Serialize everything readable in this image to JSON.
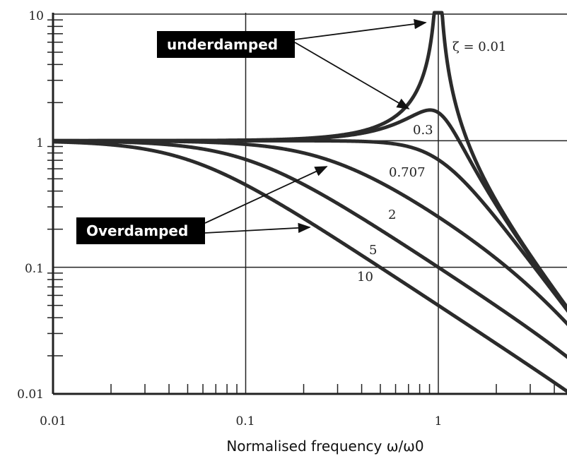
{
  "chart_data": {
    "type": "line",
    "title": "",
    "xlabel": "Normalised frequency ω/ω0",
    "ylabel": "",
    "xscale": "log",
    "yscale": "log",
    "xlim": [
      0.01,
      5
    ],
    "ylim": [
      0.01,
      10
    ],
    "grid": true,
    "x_ticks": [
      "0.01",
      "0.1",
      "1"
    ],
    "y_ticks": [
      "0.01",
      "0.1",
      "1",
      "10"
    ],
    "series": [
      {
        "label": "ζ = 0.01",
        "zeta": 0.01
      },
      {
        "label": "0.3",
        "zeta": 0.3
      },
      {
        "label": "0.707",
        "zeta": 0.707
      },
      {
        "label": "2",
        "zeta": 2
      },
      {
        "label": "5",
        "zeta": 5
      },
      {
        "label": "10",
        "zeta": 10
      }
    ],
    "annotations": {
      "underdamped": "underdamped",
      "overdamped": "Overdamped"
    }
  }
}
